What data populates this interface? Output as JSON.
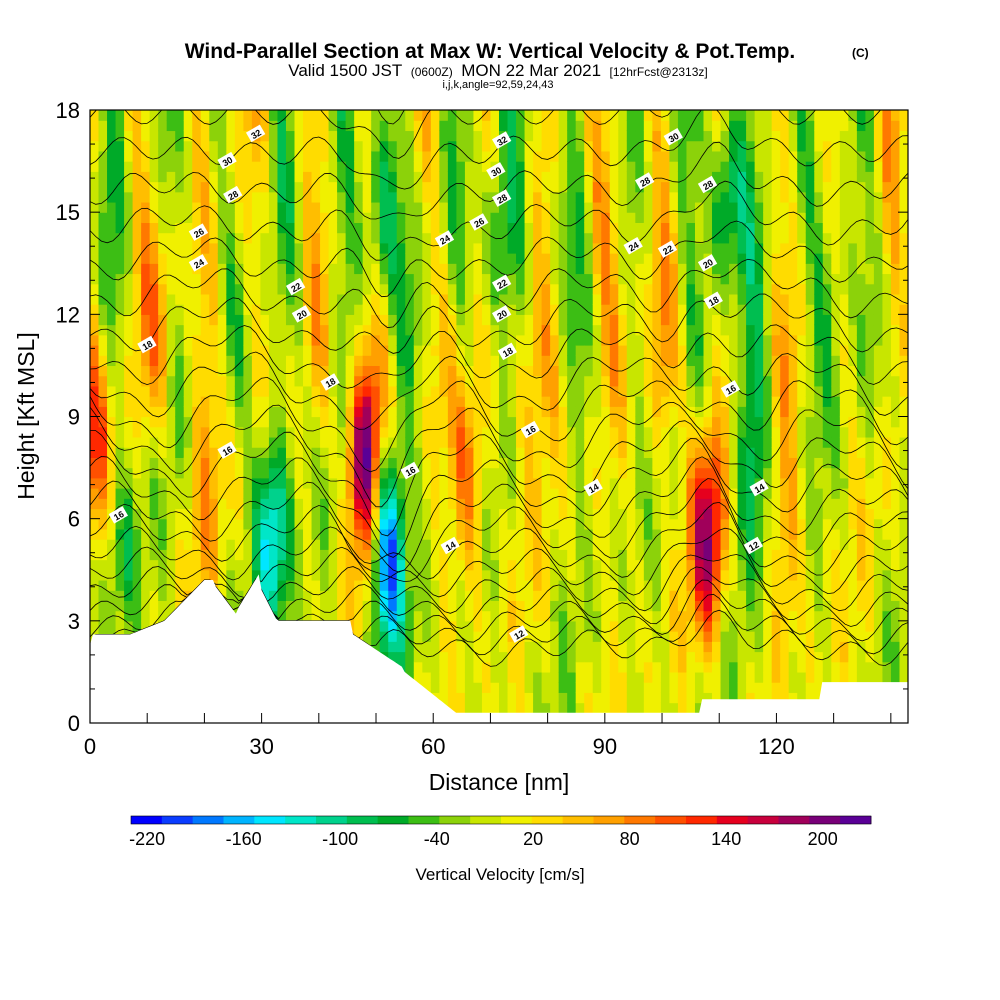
{
  "chart_data": {
    "type": "heatmap",
    "title": "Wind-Parallel Section at Max W: Vertical Velocity & Pot.Temp.",
    "title_mark": "(C)",
    "subtitle_valid": "Valid 1500 JST",
    "subtitle_utc": "(0600Z)",
    "subtitle_date": "MON 22 Mar 2021",
    "subtitle_run": "[12hrFcst@2313z]",
    "subtitle_ijk": "i,j,k,angle=92,59,24,43",
    "xlabel": "Distance [nm]",
    "ylabel": "Height [Kft MSL]",
    "xlim": [
      0,
      143
    ],
    "ylim": [
      0,
      18
    ],
    "x_ticks": [
      "0",
      "30",
      "60",
      "90",
      "120"
    ],
    "y_ticks": [
      "0",
      "3",
      "6",
      "9",
      "12",
      "15",
      "18"
    ],
    "colorbar": {
      "label": "Vertical Velocity [cm/s]",
      "tick_labels": [
        "-220",
        "-160",
        "-100",
        "-40",
        "20",
        "80",
        "140",
        "200"
      ],
      "range": [
        -230,
        230
      ],
      "colors": [
        "#0000ff",
        "#0a3cff",
        "#0078ff",
        "#00b4ff",
        "#00e6ff",
        "#00e6c8",
        "#00d28c",
        "#00be50",
        "#00aa28",
        "#3cbe14",
        "#8cd20a",
        "#c8e600",
        "#f0f000",
        "#ffdc00",
        "#ffbe00",
        "#ffa000",
        "#ff7800",
        "#ff5000",
        "#ff2800",
        "#e6001e",
        "#c8003c",
        "#a0005a",
        "#780078",
        "#5a0096"
      ]
    },
    "updrafts": [
      {
        "x": 48,
        "z": 8.0,
        "w": 220
      },
      {
        "x": 108,
        "z": 5.5,
        "w": 170
      },
      {
        "x": 1,
        "z": 8.0,
        "w": 110
      },
      {
        "x": 66,
        "z": 7.5,
        "w": 90
      },
      {
        "x": 77,
        "z": 10.5,
        "w": 80
      },
      {
        "x": 100,
        "z": 10.5,
        "w": 60
      },
      {
        "x": 122,
        "z": 5.5,
        "w": 60
      },
      {
        "x": 13,
        "z": 12.0,
        "w": 60
      },
      {
        "x": 20,
        "z": 7.0,
        "w": 50
      },
      {
        "x": 89,
        "z": 14.5,
        "w": 60
      }
    ],
    "downdrafts": [
      {
        "x": 52,
        "z": 5.0,
        "w": -215
      },
      {
        "x": 32,
        "z": 5.5,
        "w": -150
      },
      {
        "x": 111,
        "z": 15.5,
        "w": -140
      },
      {
        "x": 51,
        "z": 15.0,
        "w": -120
      },
      {
        "x": 71,
        "z": 14.0,
        "w": -100
      },
      {
        "x": 116,
        "z": 7.5,
        "w": -90
      },
      {
        "x": 6,
        "z": 5.0,
        "w": -70
      },
      {
        "x": 82,
        "z": 15.0,
        "w": -60
      },
      {
        "x": 130,
        "z": 13.0,
        "w": -60
      }
    ],
    "theta_contour_labels": [
      {
        "text": "32",
        "x": 29,
        "z": 17.3
      },
      {
        "text": "30",
        "x": 24,
        "z": 16.5
      },
      {
        "text": "28",
        "x": 25,
        "z": 15.5
      },
      {
        "text": "26",
        "x": 19,
        "z": 14.4
      },
      {
        "text": "24",
        "x": 19,
        "z": 13.5
      },
      {
        "text": "22",
        "x": 36,
        "z": 12.8
      },
      {
        "text": "20",
        "x": 37,
        "z": 12.0
      },
      {
        "text": "18",
        "x": 10,
        "z": 11.1
      },
      {
        "text": "18",
        "x": 42,
        "z": 10.0
      },
      {
        "text": "16",
        "x": 24,
        "z": 8.0
      },
      {
        "text": "16",
        "x": 5,
        "z": 6.1
      },
      {
        "text": "16",
        "x": 56,
        "z": 7.4
      },
      {
        "text": "14",
        "x": 63,
        "z": 5.2
      },
      {
        "text": "12",
        "x": 75,
        "z": 2.6
      },
      {
        "text": "24",
        "x": 62,
        "z": 14.2
      },
      {
        "text": "26",
        "x": 68,
        "z": 14.7
      },
      {
        "text": "28",
        "x": 72,
        "z": 15.4
      },
      {
        "text": "30",
        "x": 71,
        "z": 16.2
      },
      {
        "text": "32",
        "x": 72,
        "z": 17.1
      },
      {
        "text": "22",
        "x": 72,
        "z": 12.9
      },
      {
        "text": "20",
        "x": 72,
        "z": 12.0
      },
      {
        "text": "18",
        "x": 73,
        "z": 10.9
      },
      {
        "text": "16",
        "x": 77,
        "z": 8.6
      },
      {
        "text": "14",
        "x": 88,
        "z": 6.9
      },
      {
        "text": "30",
        "x": 102,
        "z": 17.2
      },
      {
        "text": "28",
        "x": 97,
        "z": 15.9
      },
      {
        "text": "28",
        "x": 108,
        "z": 15.8
      },
      {
        "text": "24",
        "x": 95,
        "z": 14.0
      },
      {
        "text": "22",
        "x": 101,
        "z": 13.9
      },
      {
        "text": "20",
        "x": 108,
        "z": 13.5
      },
      {
        "text": "18",
        "x": 109,
        "z": 12.4
      },
      {
        "text": "16",
        "x": 112,
        "z": 9.8
      },
      {
        "text": "14",
        "x": 117,
        "z": 6.9
      },
      {
        "text": "12",
        "x": 116,
        "z": 5.2
      }
    ]
  }
}
